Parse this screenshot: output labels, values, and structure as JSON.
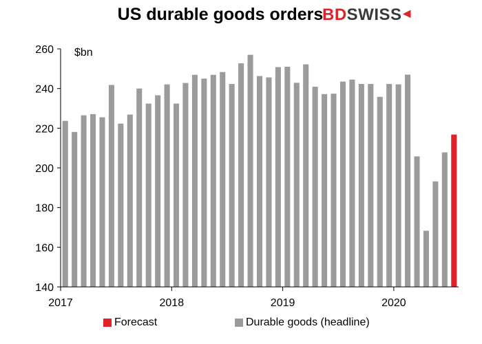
{
  "logo_text_bd": "BD",
  "logo_text_rest": "SWISS",
  "colors": {
    "forecast": "#e0222a",
    "actual": "#9b9b9b",
    "axis": "#000000"
  },
  "chart_data": {
    "type": "bar",
    "title": "US durable goods orders",
    "unit_label": "$bn",
    "ylim": [
      140,
      260
    ],
    "yticks": [
      140,
      160,
      180,
      200,
      220,
      240,
      260
    ],
    "xtick_labels": [
      "2017",
      "2018",
      "2019",
      "2020"
    ],
    "grid": false,
    "legend_position": "bottom",
    "series": [
      {
        "name": "Durable goods (headline)",
        "categories": [
          "2017-01",
          "2017-02",
          "2017-03",
          "2017-04",
          "2017-05",
          "2017-06",
          "2017-07",
          "2017-08",
          "2017-09",
          "2017-10",
          "2017-11",
          "2017-12",
          "2018-01",
          "2018-02",
          "2018-03",
          "2018-04",
          "2018-05",
          "2018-06",
          "2018-07",
          "2018-08",
          "2018-09",
          "2018-10",
          "2018-11",
          "2018-12",
          "2019-01",
          "2019-02",
          "2019-03",
          "2019-04",
          "2019-05",
          "2019-06",
          "2019-07",
          "2019-08",
          "2019-09",
          "2019-10",
          "2019-11",
          "2019-12",
          "2020-01",
          "2020-02",
          "2020-03",
          "2020-04",
          "2020-05",
          "2020-06"
        ],
        "values": [
          223.7,
          218.1,
          226.5,
          227.1,
          225.5,
          241.8,
          222.3,
          226.9,
          240.0,
          232.4,
          236.6,
          242.1,
          232.4,
          242.8,
          246.9,
          245.0,
          246.9,
          248.3,
          242.3,
          252.7,
          257.0,
          246.3,
          245.6,
          250.8,
          251.0,
          242.9,
          252.2,
          240.9,
          237.2,
          237.4,
          243.5,
          244.5,
          242.3,
          242.3,
          235.8,
          242.3,
          242.1,
          247.0,
          205.8,
          168.3,
          193.2,
          207.8
        ]
      },
      {
        "name": "Forecast",
        "categories": [
          "2020-07"
        ],
        "values": [
          216.8
        ]
      }
    ]
  }
}
